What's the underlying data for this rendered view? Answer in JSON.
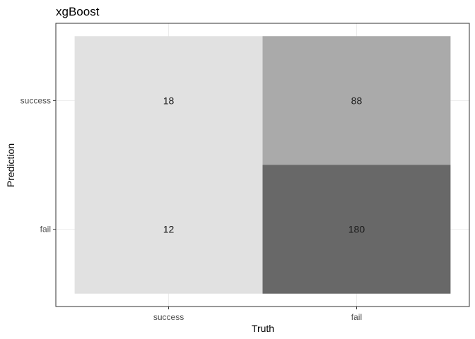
{
  "chart_data": {
    "type": "heatmap",
    "title": "xgBoost",
    "xlabel": "Truth",
    "ylabel": "Prediction",
    "x_categories": [
      "success",
      "fail"
    ],
    "y_categories": [
      "success",
      "fail"
    ],
    "cells": [
      {
        "truth": "success",
        "prediction": "success",
        "value": 18,
        "color": "#e1e1e1"
      },
      {
        "truth": "fail",
        "prediction": "success",
        "value": 88,
        "color": "#aaaaaa"
      },
      {
        "truth": "success",
        "prediction": "fail",
        "value": 12,
        "color": "#e1e1e1"
      },
      {
        "truth": "fail",
        "prediction": "fail",
        "value": 180,
        "color": "#686868"
      }
    ],
    "grid": true,
    "legend": "none"
  }
}
